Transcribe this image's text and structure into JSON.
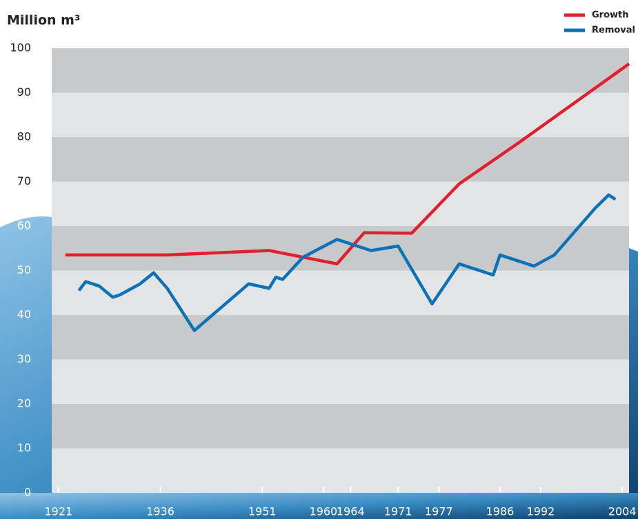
{
  "chart_data": {
    "type": "line",
    "title": "Million m³",
    "xlim": [
      1920,
      2005
    ],
    "xticks": [
      1921,
      1936,
      1951,
      1960,
      1964,
      1971,
      1977,
      1986,
      1992,
      2004
    ],
    "ylim": [
      0,
      100
    ],
    "yticks": [
      0,
      10,
      20,
      30,
      40,
      50,
      60,
      70,
      80,
      90,
      100
    ],
    "grid": "bands",
    "legend": "top-right",
    "series": [
      {
        "name": "Growth",
        "color": "#e0202e",
        "x": [
          1922,
          1937,
          1952,
          1962,
          1966,
          1973,
          1980,
          1989,
          2005
        ],
        "values": [
          53.5,
          53.5,
          54.5,
          51.5,
          58.5,
          58.4,
          69.5,
          79,
          96.5
        ]
      },
      {
        "name": "Removal",
        "color": "#0b72b8",
        "x": [
          1924,
          1925,
          1927,
          1929,
          1930,
          1933,
          1935,
          1937,
          1941,
          1949,
          1952,
          1953,
          1954,
          1957,
          1962,
          1967,
          1971,
          1976,
          1980,
          1985,
          1986,
          1991,
          1994,
          2000,
          2002,
          2003
        ],
        "values": [
          45.5,
          47.5,
          46.5,
          44,
          44.5,
          47,
          49.5,
          46,
          36.5,
          47,
          46,
          48.5,
          48,
          53,
          57,
          54.5,
          55.5,
          42.5,
          51.5,
          49,
          53.5,
          51,
          53.5,
          64,
          67,
          66
        ]
      }
    ]
  }
}
